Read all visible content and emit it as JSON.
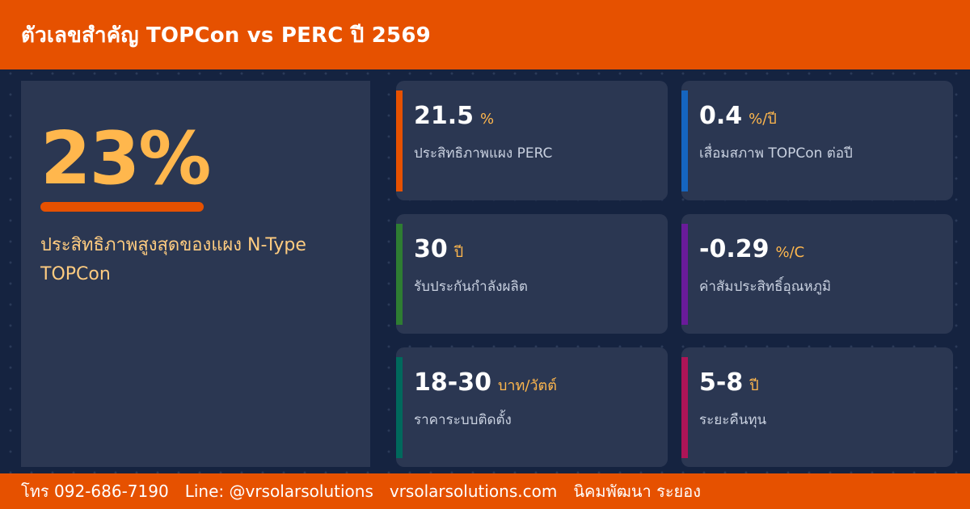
{
  "header": {
    "title": "ตัวเลขสำคัญ TOPCon vs PERC ปี 2569"
  },
  "hero": {
    "value": "23%",
    "caption": "ประสิทธิภาพสูงสุดของแผง N-Type TOPCon"
  },
  "cards": [
    {
      "value": "21.5",
      "unit": "%",
      "label": "ประสิทธิภาพแผง PERC",
      "accent": "#e65100"
    },
    {
      "value": "0.4",
      "unit": "%/ปี",
      "label": "เสื่อมสภาพ TOPCon ต่อปี",
      "accent": "#1565c0"
    },
    {
      "value": "30",
      "unit": "ปี",
      "label": "รับประกันกำลังผลิต",
      "accent": "#2e7d32"
    },
    {
      "value": "-0.29",
      "unit": "%/C",
      "label": "ค่าสัมประสิทธิ์อุณหภูมิ",
      "accent": "#6a1b9a"
    },
    {
      "value": "18-30",
      "unit": "บาท/วัตต์",
      "label": "ราคาระบบติดตั้ง",
      "accent": "#00695c"
    },
    {
      "value": "5-8",
      "unit": "ปี",
      "label": "ระยะคืนทุน",
      "accent": "#ad1457"
    }
  ],
  "footer": {
    "phone": "โทร 092-686-7190",
    "line": "Line: @vrsolarsolutions",
    "website": "vrsolarsolutions.com",
    "location": "นิคมพัฒนา ระยอง"
  }
}
